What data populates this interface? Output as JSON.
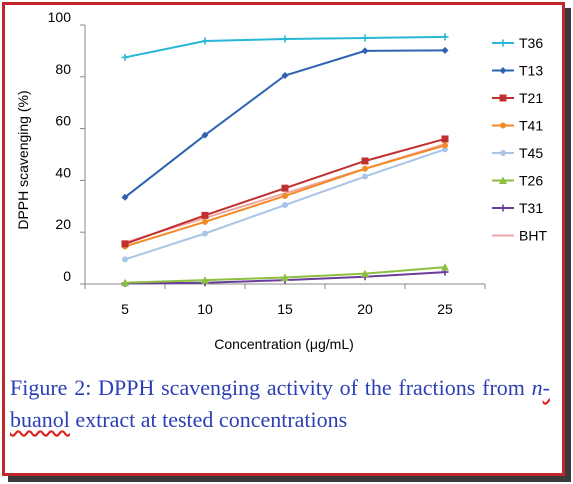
{
  "chart_data": {
    "type": "line",
    "title": "",
    "xlabel": "Concentration (μg/mL)",
    "ylabel": "DPPH scavenging (%)",
    "categories": [
      "5",
      "10",
      "15",
      "20",
      "25"
    ],
    "ylim": [
      0,
      100
    ],
    "yticks": [
      "0",
      "20",
      "40",
      "60",
      "80",
      "100"
    ],
    "grid": false,
    "legend_position": "right",
    "series": [
      {
        "name": "T36",
        "color": "#29b6d6",
        "marker": "plus",
        "values": [
          87.5,
          93.8,
          94.6,
          95.0,
          95.4
        ]
      },
      {
        "name": "T13",
        "color": "#2e63b0",
        "marker": "diamond",
        "values": [
          33.5,
          57.5,
          80.5,
          90.0,
          90.2
        ]
      },
      {
        "name": "T21",
        "color": "#c0302f",
        "marker": "square",
        "values": [
          15.5,
          26.5,
          37.0,
          47.5,
          56.0
        ]
      },
      {
        "name": "T41",
        "color": "#f28a26",
        "marker": "circle",
        "values": [
          14.5,
          24.0,
          34.0,
          44.5,
          53.5
        ]
      },
      {
        "name": "T45",
        "color": "#a9c4e6",
        "marker": "circle",
        "values": [
          9.5,
          19.5,
          30.5,
          41.5,
          52.0
        ]
      },
      {
        "name": "T26",
        "color": "#8cbf3f",
        "marker": "triangle",
        "values": [
          0.5,
          1.5,
          2.5,
          4.0,
          6.5
        ]
      },
      {
        "name": "T31",
        "color": "#6a3d9a",
        "marker": "plus",
        "values": [
          0.2,
          0.5,
          1.5,
          2.8,
          4.6
        ]
      },
      {
        "name": "BHT",
        "color": "#f2a6a4",
        "marker": "none",
        "values": [
          16.0,
          25.5,
          35.0,
          44.5,
          54.0
        ]
      }
    ]
  },
  "caption": {
    "prefix": "Figure 2: DPPH scavenging activity of the fractions from ",
    "italic": "n",
    "underlined": "-buanol",
    "suffix": " extract at tested concentrations"
  }
}
